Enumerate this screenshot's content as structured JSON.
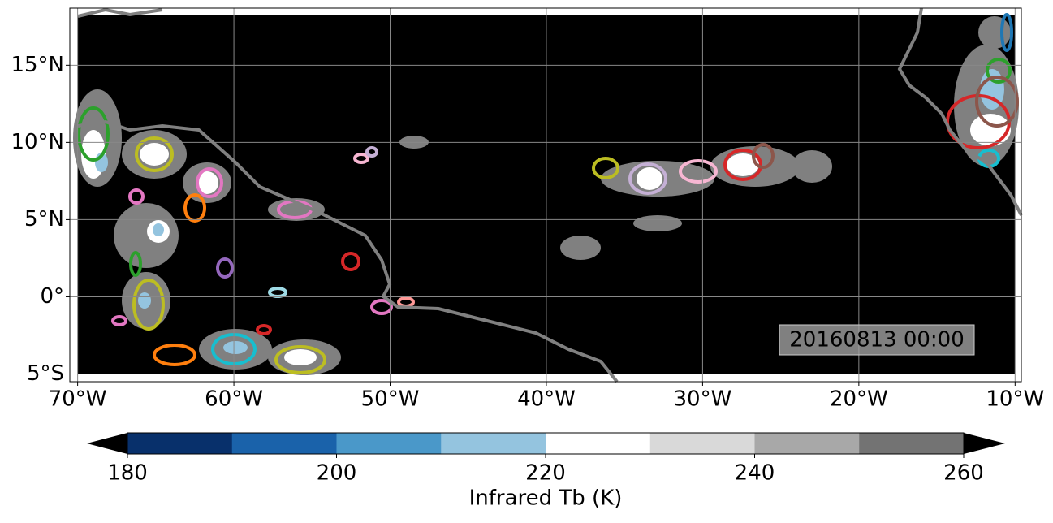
{
  "map": {
    "xlim": [
      -70.5,
      -9.6
    ],
    "ylim": [
      -5.5,
      18.7
    ],
    "xticks": [
      {
        "value": -70,
        "label": "70°W"
      },
      {
        "value": -60,
        "label": "60°W"
      },
      {
        "value": -50,
        "label": "50°W"
      },
      {
        "value": -40,
        "label": "40°W"
      },
      {
        "value": -30,
        "label": "30°W"
      },
      {
        "value": -20,
        "label": "20°W"
      },
      {
        "value": -10,
        "label": "10°W"
      }
    ],
    "yticks": [
      {
        "value": -5,
        "label": "5°S"
      },
      {
        "value": 0,
        "label": "0°"
      },
      {
        "value": 5,
        "label": "5°N"
      },
      {
        "value": 10,
        "label": "10°N"
      },
      {
        "value": 15,
        "label": "15°N"
      }
    ],
    "grid": true,
    "timestamp": "20160813 00:00"
  },
  "colorbar": {
    "label": "Infrared Tb (K)",
    "vlim": [
      180,
      260
    ],
    "ticks": [
      180,
      200,
      220,
      240,
      260
    ],
    "colors": [
      "#08306b",
      "#1a62aa",
      "#4a98c9",
      "#94c4df",
      "#ffffff",
      "#d9d9d9",
      "#a8a8a8",
      "#737373"
    ]
  }
}
